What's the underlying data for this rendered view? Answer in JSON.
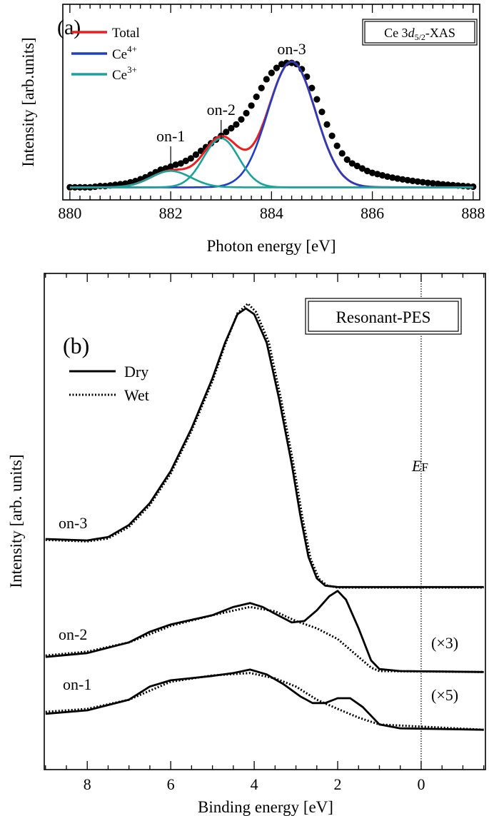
{
  "chart_data": [
    {
      "type": "scatter",
      "panel_label": "(a)",
      "box_label": {
        "prefix": "Ce 3",
        "italic": "d",
        "sub": "5/2",
        "suffix": "-XAS"
      },
      "xlabel": "Photon energy [eV]",
      "ylabel": "Intensity [arb.units]",
      "xlim": [
        879.86,
        888.13
      ],
      "ylim": [
        -0.09,
        1.466
      ],
      "xticks": [
        880,
        882,
        884,
        886,
        888
      ],
      "xtick_labels": [
        "880",
        "882",
        "884",
        "886",
        "888"
      ],
      "minor_tick_step": 0.2,
      "grid": false,
      "legend_position": "top-left",
      "legend": [
        {
          "name": "Total",
          "sup": "",
          "color": "#ee1c1c"
        },
        {
          "name": "Ce",
          "sup": "4+",
          "color": "#1f3fc8"
        },
        {
          "name": "Ce",
          "sup": "3+",
          "color": "#1aa39c"
        }
      ],
      "data_points": {
        "x_start": 880.0,
        "x_step": 0.1,
        "y": [
          0.01,
          0.01,
          0.01,
          0.01,
          0.01,
          0.015,
          0.02,
          0.02,
          0.025,
          0.03,
          0.035,
          0.04,
          0.05,
          0.06,
          0.075,
          0.09,
          0.11,
          0.13,
          0.15,
          0.16,
          0.175,
          0.19,
          0.2,
          0.22,
          0.24,
          0.27,
          0.3,
          0.33,
          0.36,
          0.39,
          0.42,
          0.45,
          0.48,
          0.51,
          0.55,
          0.6,
          0.66,
          0.73,
          0.8,
          0.87,
          0.92,
          0.96,
          0.99,
          1.0,
          1.0,
          0.99,
          0.95,
          0.89,
          0.8,
          0.71,
          0.61,
          0.51,
          0.42,
          0.34,
          0.28,
          0.23,
          0.2,
          0.18,
          0.16,
          0.14,
          0.125,
          0.115,
          0.105,
          0.095,
          0.087,
          0.08,
          0.073,
          0.067,
          0.061,
          0.056,
          0.051,
          0.046,
          0.042,
          0.038,
          0.034,
          0.03,
          0.027,
          0.024,
          0.021,
          0.018,
          0.015
        ]
      },
      "fit_components": [
        {
          "series": "Ce4+",
          "center": 884.4,
          "height": 1.0,
          "sigma": 0.47
        },
        {
          "series": "Ce3+",
          "center": 883.0,
          "height": 0.39,
          "sigma": 0.35
        },
        {
          "series": "Ce3+",
          "center": 882.0,
          "height": 0.13,
          "sigma": 0.4
        }
      ],
      "fit_baseline": 0.01,
      "annotations": [
        {
          "text": "on-1",
          "x": 882.0
        },
        {
          "text": "on-2",
          "x": 883.0
        },
        {
          "text": "on-3",
          "x": 884.4
        }
      ]
    },
    {
      "type": "line",
      "panel_label": "(b)",
      "box_label": "Resonant-PES",
      "xlabel": "Binding energy  [eV]",
      "ylabel": "Intensity [arb. units]",
      "xlim": [
        9.03,
        -1.54
      ],
      "ylim": [
        0,
        102.2
      ],
      "xticks": [
        8,
        6,
        4,
        2,
        0
      ],
      "xtick_labels": [
        "8",
        "6",
        "4",
        "2",
        "0"
      ],
      "minor_tick_step": 0.5,
      "grid": false,
      "legend_position": "top-left",
      "legend": [
        {
          "name": "Dry",
          "style": "solid"
        },
        {
          "name": "Wet",
          "style": "dotted"
        }
      ],
      "fermi_level": {
        "label_main": "E",
        "label_sub": "F",
        "x": 0
      },
      "spectra": [
        {
          "label": "on-3",
          "scale_label": "",
          "dry": [
            [
              9,
              47.5
            ],
            [
              8,
              47.2
            ],
            [
              7.5,
              47.9
            ],
            [
              7,
              50.4
            ],
            [
              6.5,
              54.9
            ],
            [
              6,
              61.5
            ],
            [
              5.5,
              70.3
            ],
            [
              5,
              80.6
            ],
            [
              4.7,
              87.9
            ],
            [
              4.4,
              93.8
            ],
            [
              4.2,
              95.0
            ],
            [
              4.0,
              93.8
            ],
            [
              3.7,
              87.9
            ],
            [
              3.4,
              76.2
            ],
            [
              3.1,
              62.9
            ],
            [
              2.9,
              52.6
            ],
            [
              2.7,
              43.8
            ],
            [
              2.5,
              39.4
            ],
            [
              2.3,
              37.9
            ],
            [
              2,
              37.6
            ],
            [
              -1.5,
              37.6
            ]
          ],
          "wet": [
            [
              9,
              47.3
            ],
            [
              8,
              47.0
            ],
            [
              7.5,
              47.6
            ],
            [
              7,
              50.0
            ],
            [
              6.5,
              54.5
            ],
            [
              6,
              61.0
            ],
            [
              5.5,
              69.8
            ],
            [
              5,
              80.0
            ],
            [
              4.7,
              87.5
            ],
            [
              4.4,
              94.0
            ],
            [
              4.15,
              96.0
            ],
            [
              3.95,
              94.2
            ],
            [
              3.65,
              88.0
            ],
            [
              3.35,
              76.0
            ],
            [
              3.05,
              62.5
            ],
            [
              2.85,
              52.2
            ],
            [
              2.65,
              43.5
            ],
            [
              2.45,
              39.3
            ],
            [
              2.25,
              37.9
            ],
            [
              2,
              37.5
            ],
            [
              -1.5,
              37.5
            ]
          ]
        },
        {
          "label": "on-2",
          "scale_label": "(×3)",
          "dry": [
            [
              9,
              23.2
            ],
            [
              8,
              24.0
            ],
            [
              7,
              26.2
            ],
            [
              6.5,
              28.4
            ],
            [
              6,
              29.9
            ],
            [
              5,
              31.8
            ],
            [
              4.5,
              33.5
            ],
            [
              4.1,
              34.3
            ],
            [
              3.8,
              33.5
            ],
            [
              3.5,
              32.1
            ],
            [
              3.1,
              30.3
            ],
            [
              2.8,
              30.6
            ],
            [
              2.5,
              32.8
            ],
            [
              2.2,
              35.7
            ],
            [
              2.0,
              36.8
            ],
            [
              1.8,
              35.0
            ],
            [
              1.5,
              29.1
            ],
            [
              1.2,
              22.5
            ],
            [
              1.0,
              20.7
            ],
            [
              0.5,
              20.3
            ],
            [
              -1.5,
              20.1
            ]
          ],
          "wet": [
            [
              9,
              23.5
            ],
            [
              8,
              24.3
            ],
            [
              7,
              26.2
            ],
            [
              6,
              29.6
            ],
            [
              5,
              31.8
            ],
            [
              4.1,
              33.5
            ],
            [
              3.5,
              32.6
            ],
            [
              3,
              30.6
            ],
            [
              2.5,
              29.1
            ],
            [
              2,
              26.9
            ],
            [
              1.5,
              23.2
            ],
            [
              1.2,
              21.0
            ],
            [
              1.0,
              20.3
            ],
            [
              -1.5,
              20.1
            ]
          ]
        },
        {
          "label": "on-1",
          "scale_label": "(×5)",
          "dry": [
            [
              9,
              11.5
            ],
            [
              8,
              12.2
            ],
            [
              7,
              14.4
            ],
            [
              6.5,
              17.1
            ],
            [
              6,
              18.4
            ],
            [
              5,
              19.3
            ],
            [
              4.5,
              19.9
            ],
            [
              4.1,
              20.6
            ],
            [
              3.7,
              19.6
            ],
            [
              3.3,
              17.6
            ],
            [
              2.9,
              15.1
            ],
            [
              2.6,
              13.7
            ],
            [
              2.3,
              13.7
            ],
            [
              2.0,
              14.7
            ],
            [
              1.7,
              14.7
            ],
            [
              1.4,
              12.9
            ],
            [
              1.0,
              9.3
            ],
            [
              0.5,
              8.5
            ],
            [
              -1.5,
              8.2
            ]
          ],
          "wet": [
            [
              9,
              11.9
            ],
            [
              8,
              12.5
            ],
            [
              7,
              14.4
            ],
            [
              6,
              18.1
            ],
            [
              5,
              19.4
            ],
            [
              4.1,
              19.9
            ],
            [
              3.5,
              18.8
            ],
            [
              3,
              17.1
            ],
            [
              2.5,
              14.4
            ],
            [
              2,
              12.5
            ],
            [
              1.5,
              10.7
            ],
            [
              1.0,
              9.3
            ],
            [
              -1.5,
              8.2
            ]
          ]
        }
      ]
    }
  ]
}
